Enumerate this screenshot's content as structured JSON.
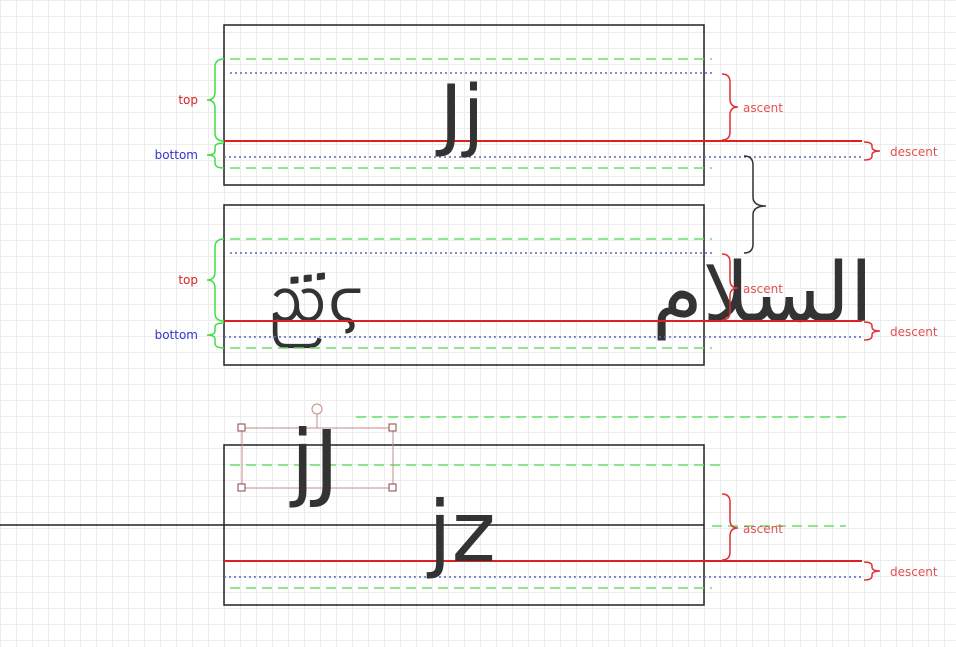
{
  "colors": {
    "baseline": "#e02020",
    "top_bottom": "#66e066",
    "ascent_descent": "#5566cc",
    "top_label": "#e02020",
    "bottom_label": "#3333cc",
    "measure_label": "#e05050",
    "box": "#222222",
    "text": "#333333",
    "handle": "#c88888"
  },
  "labels": {
    "top": "top",
    "bottom": "bottom",
    "ascent": "ascent",
    "descent": "descent"
  },
  "samples": {
    "latin": "Jj",
    "arabic": "السلام",
    "mixed": "ᨬ፝ϛ",
    "floating": "jJ",
    "lower": "jz"
  }
}
